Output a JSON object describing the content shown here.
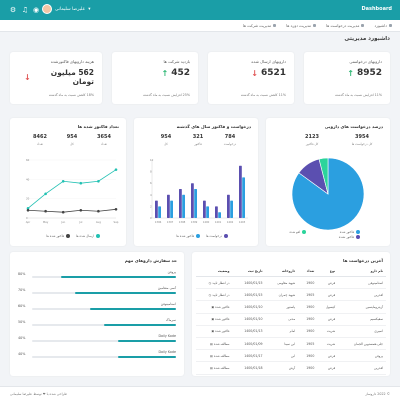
{
  "topbar": {
    "brand": "Dashboard",
    "user_name": "علیرضا سلیمانی",
    "user_caret": "▾"
  },
  "nav": [
    {
      "label": "داشبورد"
    },
    {
      "label": "مدیریت درخواست ها"
    },
    {
      "label": "مدیریت دوره ها"
    },
    {
      "label": "مدیریت شرکت ها"
    }
  ],
  "page_title": "داشبورد مدیریتی",
  "stats": [
    {
      "title": "دارویهای درخواستی",
      "value": "8952",
      "arrow": "↑",
      "arrow_color": "#2bb673",
      "note": "11% افزایش نسبت به ماه گذشته"
    },
    {
      "title": "دارویهای ارسال شده",
      "value": "6521",
      "arrow": "↓",
      "arrow_color": "#e05353",
      "note": "11% کاهش نسبت به ماه گذشته"
    },
    {
      "title": "بازدید شرکت ها",
      "value": "452",
      "arrow": "↑",
      "arrow_color": "#2bb673",
      "note": "25% افزایش نسبت به ماه گذشته"
    },
    {
      "title": "هزینه دارویهای فاکتورشده",
      "value": "562 میلیون تومان",
      "arrow": "↓",
      "arrow_color": "#e05353",
      "note": "18% کاهش نسبت به ماه گذشته"
    }
  ],
  "pie_card": {
    "title": "درصد درخواست های دارویی",
    "mini": [
      {
        "v": "3954",
        "l": "کل درخواست ها"
      },
      {
        "v": "2123",
        "l": "کل فاکتور"
      }
    ],
    "legend": [
      {
        "label": "فاکتور شده"
      },
      {
        "label": "فاکتور نشده"
      },
      {
        "label": "لغو شده"
      }
    ]
  },
  "bar_card": {
    "title": "درخواست و فاکتور سال های گذشته",
    "mini": [
      {
        "v": "784",
        "l": "درخواست"
      },
      {
        "v": "321",
        "l": "فاکتور"
      },
      {
        "v": "954",
        "l": "کل"
      }
    ],
    "legend": [
      {
        "label": "درخواست ها"
      },
      {
        "label": "فاکتور شده ها"
      }
    ]
  },
  "line_card": {
    "title": "تعداد فاکتور شده ها",
    "mini": [
      {
        "v": "3654",
        "l": "تعداد"
      },
      {
        "v": "954",
        "l": "کل"
      },
      {
        "v": "8462",
        "l": "تعداد"
      }
    ],
    "legend": [
      {
        "label": "ارسال شده ها"
      },
      {
        "label": "فاکتور شده ها"
      }
    ]
  },
  "latest": {
    "title": "آخرین درخواست ها",
    "headers": [
      "نام دارو",
      "نوع",
      "تعداد",
      "داروخانه",
      "تاریخ ثبت",
      "وضعیت"
    ],
    "rows": [
      [
        "استامینوفن",
        "قرص",
        "1900",
        "شهید مقاومی",
        "1400/01/15",
        "در انتظار تایید"
      ],
      [
        "افدرین",
        "قرص",
        "1905",
        "شهید چمران",
        "1400/01/15",
        "در انتظار تایید"
      ],
      [
        "آزیترومایسین",
        "کپسول",
        "1900",
        "پاستور",
        "1400/01/10",
        "فاکتور شده"
      ],
      [
        "سفیکسیم",
        "قرص",
        "1900",
        "مدنی",
        "1400/01/10",
        "فاکتور شده"
      ],
      [
        "اسپری",
        "شربت",
        "1900",
        "امام",
        "1400/01/13",
        "فاکتور شده"
      ],
      [
        "جلی-همستوین الجمان",
        "شربت",
        "1905",
        "ابن سینا",
        "1400/01/09",
        "مطالعه شده"
      ],
      [
        "پروفن",
        "قرص",
        "1900",
        "ابن",
        "1400/01/17",
        "مطالعه شده"
      ],
      [
        "افدرین",
        "قرص",
        "1900",
        "آرش",
        "1400/01/18",
        "مطالعه شده"
      ]
    ]
  },
  "progress": {
    "title": "حد سفارش داروهای مهم",
    "items": [
      {
        "name": "پروفن",
        "pct": "80%",
        "value": 0.8
      },
      {
        "name": "آسی منفامین",
        "pct": "70%",
        "value": 0.7
      },
      {
        "name": "استامینوفن",
        "pct": "60%",
        "value": 0.6
      },
      {
        "name": "سرماک",
        "pct": "50%",
        "value": 0.5
      },
      {
        "name": "Daily Kode",
        "pct": "40%",
        "value": 0.4
      },
      {
        "name": "Daily Kode",
        "pct": "40%",
        "value": 0.4
      }
    ]
  },
  "footer": {
    "left": "طراحی شده با ❤ توسط علیرضا سلیمانی",
    "right": "© 2022 داروساز"
  },
  "chart_data": [
    {
      "type": "pie",
      "categories": [
        "فاکتور شده",
        "فاکتور نشده",
        "لغو شده"
      ],
      "values": [
        85,
        11,
        4
      ],
      "colors": [
        "#2b9fe0",
        "#5b4fb0",
        "#2bd49b"
      ]
    },
    {
      "type": "bar",
      "categories": [
        "1396",
        "1397",
        "1398",
        "1399",
        "1400",
        "1401",
        "1402",
        "1403"
      ],
      "series": [
        {
          "name": "درخواست ها",
          "values": [
            3,
            4,
            5,
            6,
            3,
            2,
            4,
            9
          ],
          "color": "#5b4fb0"
        },
        {
          "name": "فاکتور شده ها",
          "values": [
            2,
            3,
            4,
            5,
            2,
            1,
            3,
            7
          ],
          "color": "#2b9fe0"
        }
      ],
      "ylim": [
        0,
        10
      ]
    },
    {
      "type": "line",
      "x": [
        "Apr",
        "May",
        "Jun",
        "Jul",
        "Aug",
        "Sep"
      ],
      "series": [
        {
          "name": "ارسال شده ها",
          "values": [
            10,
            25,
            38,
            36,
            38,
            50
          ],
          "color": "#22c1b3"
        },
        {
          "name": "فاکتور شده ها",
          "values": [
            8,
            7,
            6,
            8,
            7,
            9
          ],
          "color": "#444"
        }
      ],
      "ylim": [
        0,
        60
      ]
    }
  ]
}
